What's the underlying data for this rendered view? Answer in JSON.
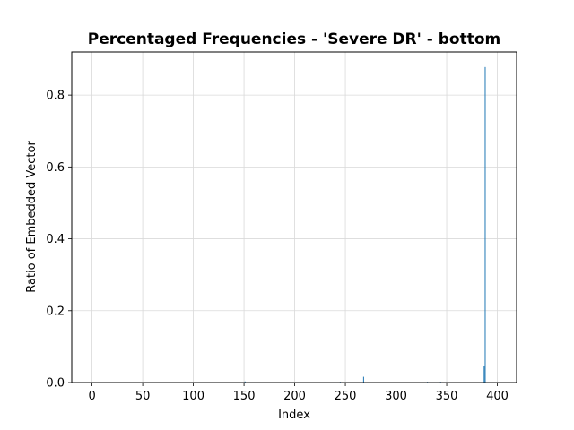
{
  "chart_data": {
    "type": "bar",
    "title": "Percentaged Frequencies - 'Severe DR' - bottom",
    "xlabel": "Index",
    "ylabel": "Ratio of Embedded Vector",
    "xlim": [
      -20,
      419
    ],
    "ylim": [
      0,
      0.92
    ],
    "xticks": [
      0,
      50,
      100,
      150,
      200,
      250,
      300,
      350,
      400
    ],
    "yticks": [
      0.0,
      0.2,
      0.4,
      0.6,
      0.8
    ],
    "ytick_labels": [
      "0.0",
      "0.2",
      "0.4",
      "0.6",
      "0.8"
    ],
    "grid": true,
    "bar_color": "#1f77b4",
    "points": [
      {
        "x": 151,
        "y": 0.003
      },
      {
        "x": 245,
        "y": 0.002
      },
      {
        "x": 268,
        "y": 0.016
      },
      {
        "x": 331,
        "y": 0.002
      },
      {
        "x": 344,
        "y": 0.002
      },
      {
        "x": 387,
        "y": 0.045
      },
      {
        "x": 388,
        "y": 0.878
      }
    ]
  }
}
